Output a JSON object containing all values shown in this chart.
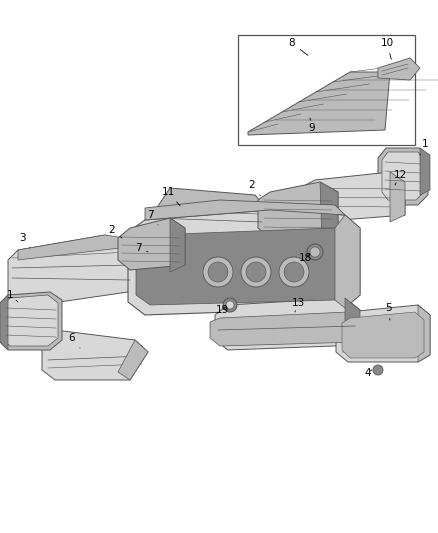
{
  "background_color": "#ffffff",
  "fig_width": 4.38,
  "fig_height": 5.33,
  "dpi": 100,
  "line_color": "#333333",
  "label_fontsize": 7.5
}
